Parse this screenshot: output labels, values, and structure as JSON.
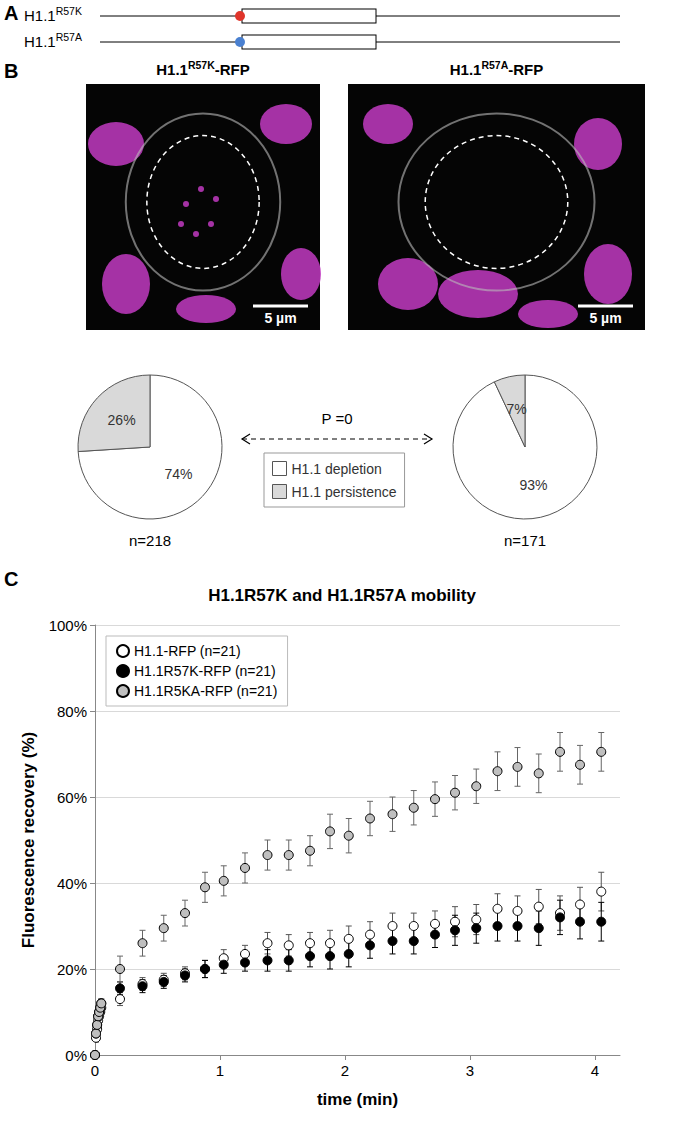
{
  "figure": {
    "panel_a": {
      "letter": "A",
      "constructs": [
        {
          "label": [
            {
              "text": "H1.1"
            },
            {
              "text": "R57K",
              "sup": true
            }
          ],
          "color": "#e0352b"
        },
        {
          "label": [
            {
              "text": "H1.1"
            },
            {
              "text": "R57A",
              "sup": true
            }
          ],
          "color": "#4a80d0"
        }
      ]
    },
    "panel_b": {
      "letter": "B",
      "images": [
        {
          "title": [
            {
              "text": "H1.1"
            },
            {
              "text": "R57K",
              "sup": true
            },
            {
              "text": "-RFP"
            }
          ],
          "scale_bar": "5 µm"
        },
        {
          "title": [
            {
              "text": "H1.1"
            },
            {
              "text": "R57A",
              "sup": true
            },
            {
              "text": "-RFP"
            }
          ],
          "scale_bar": "5 µm"
        }
      ],
      "comparison": "P =0"
    },
    "panel_c": {
      "letter": "C"
    }
  },
  "chart_data": [
    {
      "type": "pie",
      "sample_label": "n=218",
      "categories": [
        "H1.1 depletion",
        "H1.1 persistence"
      ],
      "values": [
        74,
        26
      ],
      "value_labels": [
        "74%",
        "26%"
      ],
      "colors": [
        "#ffffff",
        "#d9d9d9"
      ],
      "data_labels": true,
      "legend": "center"
    },
    {
      "type": "pie",
      "sample_label": "n=171",
      "categories": [
        "H1.1 depletion",
        "H1.1 persistence"
      ],
      "values": [
        93,
        7
      ],
      "value_labels": [
        "93%",
        "7%"
      ],
      "colors": [
        "#ffffff",
        "#d9d9d9"
      ],
      "data_labels": true
    },
    {
      "type": "scatter",
      "title": "H1.1R57K and H1.1R57A mobility",
      "x_label": "time (min)",
      "y_label": "Fluorescence recovery (%)",
      "x": [
        0,
        0.008,
        0.017,
        0.025,
        0.033,
        0.042,
        0.05,
        0.2,
        0.38,
        0.55,
        0.72,
        0.88,
        1.03,
        1.2,
        1.38,
        1.55,
        1.72,
        1.88,
        2.03,
        2.2,
        2.38,
        2.55,
        2.72,
        2.88,
        3.05,
        3.22,
        3.38,
        3.55,
        3.72,
        3.88,
        4.05
      ],
      "series": [
        {
          "name": "H1.1-RFP (n=21)",
          "color": "#ffffff",
          "marker": "circle",
          "values": [
            0,
            4,
            6,
            8,
            9,
            10,
            11,
            13,
            16.5,
            17.5,
            19,
            20,
            22.5,
            23.5,
            26,
            25.5,
            26,
            26,
            27,
            28,
            30,
            30,
            30.5,
            31,
            31.5,
            34,
            33.5,
            34.5,
            33,
            35,
            38
          ],
          "errors": [
            0,
            1,
            1,
            1,
            1,
            1,
            1,
            1.5,
            1.5,
            1.5,
            1.5,
            2,
            2,
            2,
            2.5,
            2.5,
            2.5,
            3,
            3,
            3,
            3,
            3,
            3,
            3.5,
            3.5,
            3.5,
            3.5,
            4,
            4,
            4,
            4.5
          ]
        },
        {
          "name": "H1.1R57K-RFP (n=21)",
          "color": "#000000",
          "marker": "circle",
          "values": [
            0,
            5,
            7,
            9,
            10,
            11,
            12,
            15.5,
            16,
            17,
            18.5,
            20,
            21,
            21.5,
            22,
            22,
            23,
            23,
            23.5,
            25.5,
            26.5,
            26.5,
            28,
            29,
            29.5,
            30,
            30,
            29.5,
            32,
            31,
            31
          ],
          "errors": [
            0,
            1,
            1,
            1,
            1,
            1,
            1,
            1.5,
            1.5,
            1.5,
            1.5,
            2,
            2,
            2,
            2.5,
            2.5,
            2.5,
            3,
            3,
            3,
            3,
            3,
            3,
            3.5,
            3.5,
            3.5,
            3.5,
            4,
            4,
            4,
            4.5
          ]
        },
        {
          "name": "H1.1R5KA-RFP (n=21)",
          "color": "#bfbfbf",
          "marker": "circle",
          "values": [
            0,
            5,
            7,
            9,
            10,
            11,
            12,
            20,
            26,
            29.5,
            33,
            39,
            40.5,
            43.5,
            46.5,
            46.5,
            47.5,
            52,
            51,
            55,
            56,
            57.5,
            59.5,
            61,
            62.5,
            66,
            67,
            65.5,
            70.5,
            67.5,
            70.5
          ],
          "errors": [
            0,
            1,
            1,
            1,
            1,
            1,
            1,
            3,
            3,
            3,
            3,
            3.5,
            3.5,
            3.5,
            3.5,
            3.5,
            3.5,
            4,
            4,
            4,
            4,
            4,
            4,
            4,
            4,
            4.5,
            4.5,
            4.5,
            4.5,
            4.5,
            4.5
          ]
        }
      ],
      "xlim": [
        0,
        4.2
      ],
      "xticks": [
        0,
        1,
        2,
        3,
        4
      ],
      "ylim": [
        0,
        100
      ],
      "yticks": [
        {
          "value": 0,
          "label": "0%"
        },
        {
          "value": 20,
          "label": "20%"
        },
        {
          "value": 40,
          "label": "40%"
        },
        {
          "value": 60,
          "label": "60%"
        },
        {
          "value": 80,
          "label": "80%"
        },
        {
          "value": 100,
          "label": "100%"
        }
      ],
      "grid": true,
      "legend": "upper left"
    }
  ]
}
